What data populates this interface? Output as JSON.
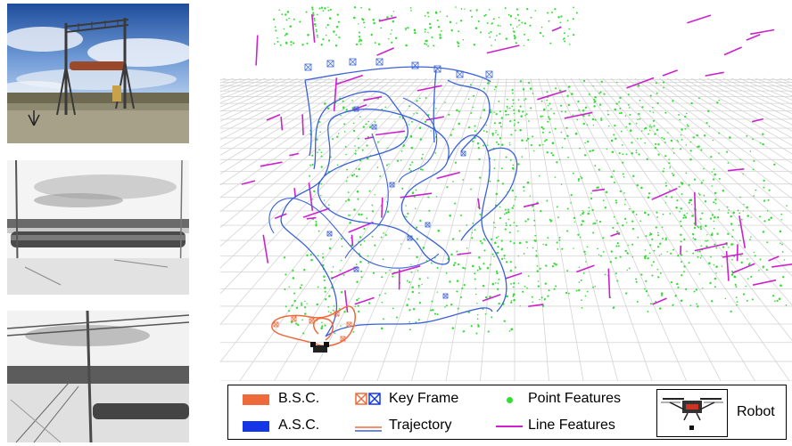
{
  "legend": {
    "bsc": "B.S.C.",
    "asc": "A.S.C.",
    "keyframe": "Key Frame",
    "trajectory": "Trajectory",
    "point_features": "Point Features",
    "line_features": "Line Features",
    "robot": "Robot"
  },
  "colors": {
    "bsc": "#ef6a3a",
    "asc": "#1436e6",
    "trajectory_blue": "#3a62d8",
    "trajectory_orange": "#ef6a3a",
    "point": "#33dd33",
    "line": "#cc22cc",
    "grid": "#d4d4d4"
  },
  "icons": {
    "keyframe_orange": "box-x-icon",
    "keyframe_blue": "box-x-icon",
    "robot": "drone-icon"
  }
}
